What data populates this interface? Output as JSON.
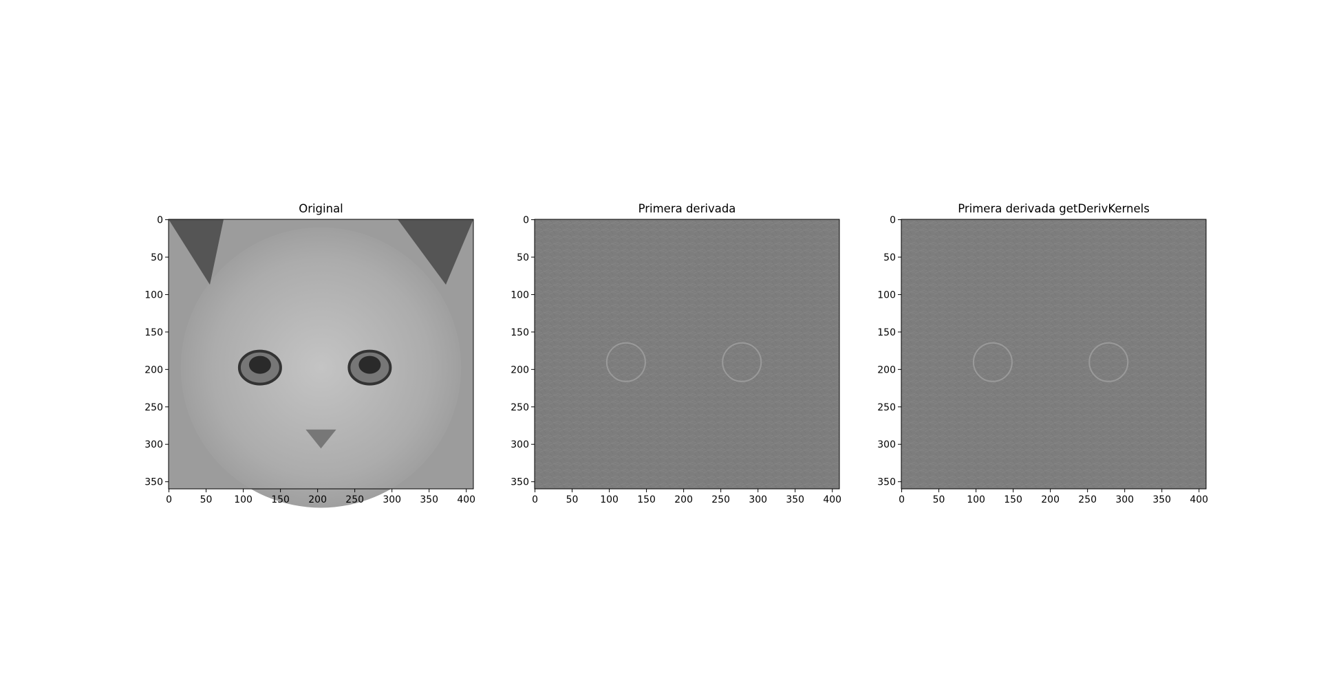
{
  "chart_data": [
    {
      "type": "image",
      "title": "Original",
      "xlim": [
        -0.5,
        409.5
      ],
      "ylim": [
        359.5,
        -0.5
      ],
      "xticks": [
        0,
        50,
        100,
        150,
        200,
        250,
        300,
        350,
        400
      ],
      "yticks": [
        0,
        50,
        100,
        150,
        200,
        250,
        300,
        350
      ]
    },
    {
      "type": "image",
      "title": "Primera derivada",
      "xlim": [
        -0.5,
        409.5
      ],
      "ylim": [
        359.5,
        -0.5
      ],
      "xticks": [
        0,
        50,
        100,
        150,
        200,
        250,
        300,
        350,
        400
      ],
      "yticks": [
        0,
        50,
        100,
        150,
        200,
        250,
        300,
        350
      ]
    },
    {
      "type": "image",
      "title": "Primera derivada getDerivKernels",
      "xlim": [
        -0.5,
        409.5
      ],
      "ylim": [
        359.5,
        -0.5
      ],
      "xticks": [
        0,
        50,
        100,
        150,
        200,
        250,
        300,
        350,
        400
      ],
      "yticks": [
        0,
        50,
        100,
        150,
        200,
        250,
        300,
        350
      ]
    }
  ]
}
